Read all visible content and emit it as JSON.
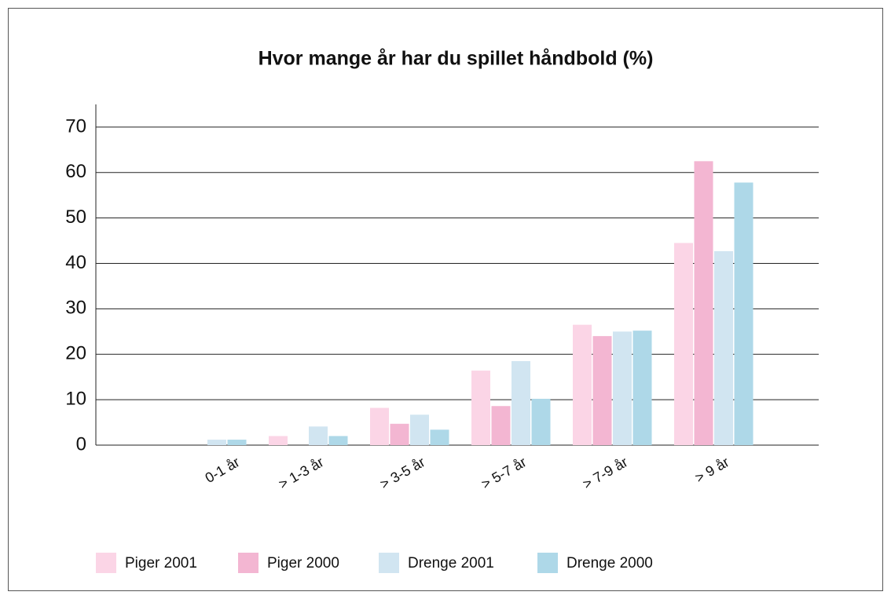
{
  "chart_data": {
    "type": "bar",
    "title": "Hvor mange år har du spillet håndbold (%)",
    "categories": [
      "0-1 år",
      "> 1-3 år",
      "> 3-5 år",
      "> 5-7 år",
      "> 7-9 år",
      "> 9 år"
    ],
    "series": [
      {
        "name": "Piger 2001",
        "color": "#fbd5e6",
        "values": [
          0,
          2,
          8.2,
          16.4,
          26.5,
          44.5
        ]
      },
      {
        "name": "Piger 2000",
        "color": "#f3b6d2",
        "values": [
          0,
          0,
          4.7,
          8.6,
          24,
          62.5
        ]
      },
      {
        "name": "Drenge 2001",
        "color": "#d1e5f1",
        "values": [
          1.2,
          4.1,
          6.7,
          18.5,
          25,
          42.7
        ]
      },
      {
        "name": "Drenge 2000",
        "color": "#aed8e8",
        "values": [
          1.2,
          2,
          3.4,
          10.2,
          25.2,
          57.8
        ]
      }
    ],
    "ylim": [
      0,
      75
    ],
    "yticks": [
      0,
      10,
      20,
      30,
      40,
      50,
      60,
      70
    ],
    "grid": true,
    "legend": "bottom"
  }
}
